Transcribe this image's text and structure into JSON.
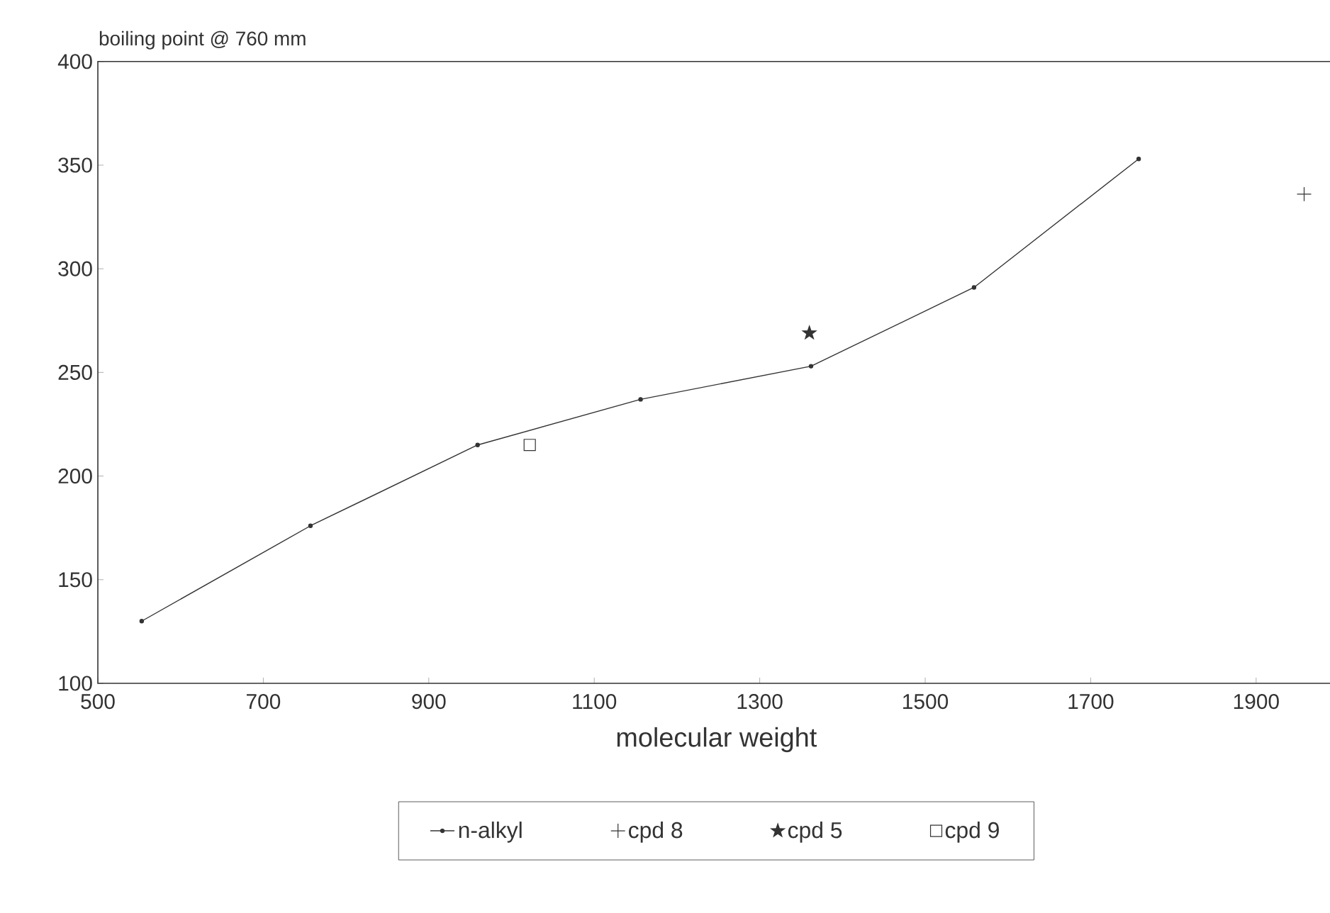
{
  "chart_data": {
    "type": "line",
    "ylabel": "boiling point @ 760 mm",
    "xlabel": "molecular weight",
    "xlim": [
      500,
      1995
    ],
    "ylim": [
      100,
      400
    ],
    "xticks": [
      500,
      700,
      900,
      1100,
      1300,
      1500,
      1700,
      1900
    ],
    "yticks": [
      100,
      150,
      200,
      250,
      300,
      350,
      400
    ],
    "legend": "bottom",
    "series": [
      {
        "name": "n-alkyl",
        "color": "#333333",
        "marker": "circle",
        "x": [
          553,
          757,
          959,
          1156,
          1362,
          1559,
          1758
        ],
        "values": [
          130,
          176,
          215,
          237,
          253,
          291,
          353
        ]
      },
      {
        "name": "cpd 8",
        "type": "scatter",
        "color": "#333333",
        "marker": "cross",
        "x": [
          1958
        ],
        "values": [
          336
        ]
      },
      {
        "name": "cpd 5",
        "type": "scatter",
        "color": "#333333",
        "marker": "star",
        "x": [
          1360
        ],
        "values": [
          269
        ]
      },
      {
        "name": "cpd 9",
        "type": "scatter",
        "color": "#333333",
        "marker": "square",
        "x": [
          1022
        ],
        "values": [
          215
        ]
      }
    ]
  }
}
